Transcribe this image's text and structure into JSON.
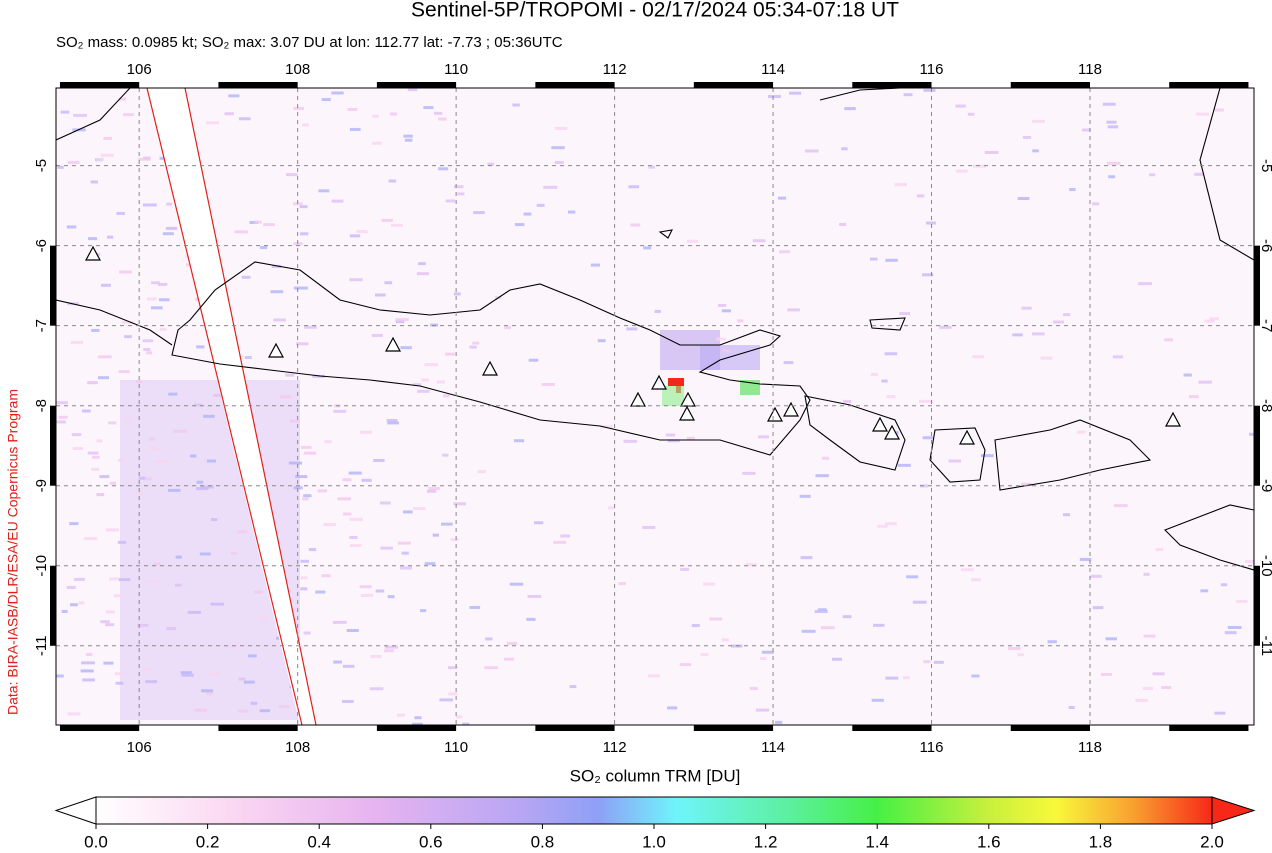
{
  "chart_data": {
    "type": "map",
    "title": "Sentinel-5P/TROPOMI - 02/17/2024 05:34-07:18 UT",
    "subtitle": "SO₂ mass: 0.0985 kt; SO₂ max: 3.07 DU at lon: 112.77 lat: -7.73 ; 05:36UTC",
    "credit": "Data: BIRA-IASB/DLR/ESA/EU Copernicus Program",
    "xlim": [
      104.95,
      120.07
    ],
    "ylim": [
      -11.99,
      -4.03
    ],
    "xticks": [
      106,
      108,
      110,
      112,
      114,
      116,
      118
    ],
    "yticks": [
      -5,
      -6,
      -7,
      -8,
      -9,
      -10,
      -11
    ],
    "grid": true,
    "colorbar": {
      "label": "SO₂ column TRM [DU]",
      "lim": [
        0,
        2
      ],
      "ticks": [
        {
          "value": 0,
          "label": "0.0"
        },
        {
          "value": 0.2,
          "label": "0.2"
        },
        {
          "value": 0.4,
          "label": "0.4"
        },
        {
          "value": 0.6,
          "label": "0.6"
        },
        {
          "value": 0.8,
          "label": "0.8"
        },
        {
          "value": 1,
          "label": "1.0"
        },
        {
          "value": 1.2,
          "label": "1.2"
        },
        {
          "value": 1.4,
          "label": "1.4"
        },
        {
          "value": 1.6,
          "label": "1.6"
        },
        {
          "value": 1.8,
          "label": "1.8"
        },
        {
          "value": 2,
          "label": "2.0"
        }
      ]
    }
  }
}
